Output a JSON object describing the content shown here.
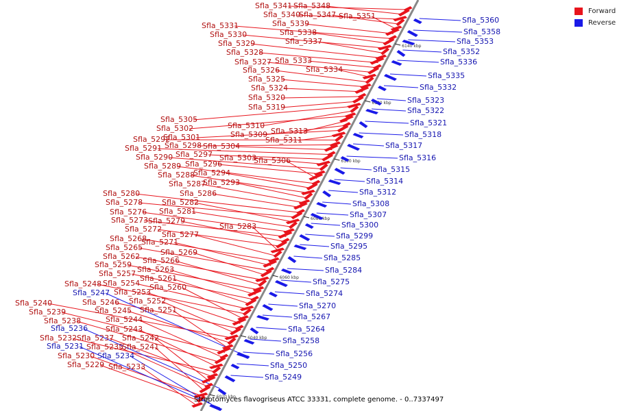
{
  "caption": "Streptomyces flavogriseus ATCC 33331, complete genome. - 0..7337497",
  "colors": {
    "forward": "#e8141c",
    "reverse": "#1a1ae8",
    "backbone": "#888888"
  },
  "legend": [
    {
      "label": "Forward",
      "color": "#e8141c"
    },
    {
      "label": "Reverse",
      "color": "#1a1ae8"
    }
  ],
  "ticks": [
    "6020 kbp",
    "6040 kbp",
    "6060 kbp",
    "6080 kbp",
    "6100 kbp",
    "6120 kbp",
    "6140 kbp"
  ],
  "forward_genes": [
    "Sfla_5341",
    "Sfla_5348",
    "Sfla_5340",
    "Sfla_5347",
    "Sfla_5351",
    "Sfla_5339",
    "Sfla_5331",
    "Sfla_5338",
    "Sfla_5330",
    "Sfla_5337",
    "Sfla_5329",
    "Sfla_5328",
    "Sfla_5333",
    "Sfla_5327",
    "Sfla_5334",
    "Sfla_5326",
    "Sfla_5325",
    "Sfla_5324",
    "Sfla_5320",
    "Sfla_5319",
    "Sfla_5305",
    "Sfla_5310",
    "Sfla_5302",
    "Sfla_5313",
    "Sfla_5309",
    "Sfla_5301",
    "Sfla_5311",
    "Sfla_5292",
    "Sfla_5298",
    "Sfla_5304",
    "Sfla_5291",
    "Sfla_5297",
    "Sfla_5303",
    "Sfla_5290",
    "Sfla_5296",
    "Sfla_5306",
    "Sfla_5289",
    "Sfla_5294",
    "Sfla_5288",
    "Sfla_5293",
    "Sfla_5287",
    "Sfla_5286",
    "Sfla_5280",
    "Sfla_5278",
    "Sfla_5282",
    "Sfla_5281",
    "Sfla_5276",
    "Sfla_5273",
    "Sfla_5279",
    "Sfla_5272",
    "Sfla_5283",
    "Sfla_5277",
    "Sfla_5268",
    "Sfla_5271",
    "Sfla_5265",
    "Sfla_5269",
    "Sfla_5262",
    "Sfla_5266",
    "Sfla_5259",
    "Sfla_5263",
    "Sfla_5257",
    "Sfla_5261",
    "Sfla_5254",
    "Sfla_5248",
    "Sfla_5260",
    "Sfla_5253",
    "Sfla_5246",
    "Sfla_5252",
    "Sfla_5240",
    "Sfla_5245",
    "Sfla_5251",
    "Sfla_5239",
    "Sfla_5244",
    "Sfla_5238",
    "Sfla_5243",
    "Sfla_5232",
    "Sfla_5237",
    "Sfla_5242",
    "Sfla_5235",
    "Sfla_5241",
    "Sfla_5230",
    "Sfla_5229",
    "Sfla_5233"
  ],
  "reverse_genes": [
    "Sfla_5360",
    "Sfla_5358",
    "Sfla_5353",
    "Sfla_5352",
    "Sfla_5336",
    "Sfla_5335",
    "Sfla_5332",
    "Sfla_5323",
    "Sfla_5322",
    "Sfla_5321",
    "Sfla_5318",
    "Sfla_5317",
    "Sfla_5316",
    "Sfla_5315",
    "Sfla_5314",
    "Sfla_5312",
    "Sfla_5308",
    "Sfla_5307",
    "Sfla_5300",
    "Sfla_5299",
    "Sfla_5295",
    "Sfla_5285",
    "Sfla_5284",
    "Sfla_5275",
    "Sfla_5274",
    "Sfla_5270",
    "Sfla_5267",
    "Sfla_5264",
    "Sfla_5258",
    "Sfla_5256",
    "Sfla_5250",
    "Sfla_5249",
    "Sfla_5247",
    "Sfla_5236",
    "Sfla_5231",
    "Sfla_5234"
  ]
}
